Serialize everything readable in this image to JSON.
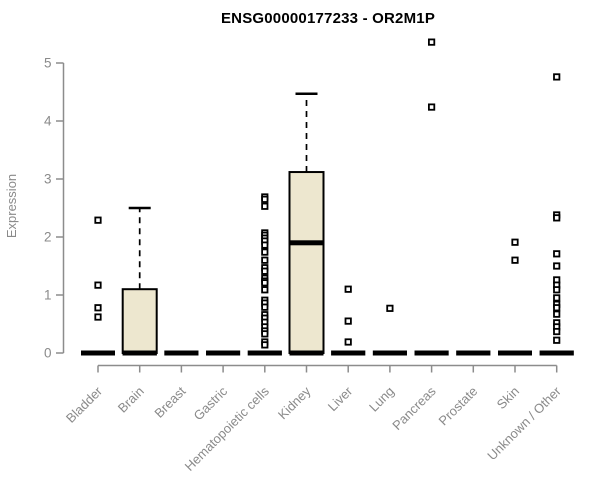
{
  "page": {
    "title": "ENSG00000177233 - OR2M1P"
  },
  "chart_data": {
    "type": "boxplot",
    "title": "ENSG00000177233 - OR2M1P",
    "ylabel": "Expression",
    "xlabel": "",
    "ylim": [
      0,
      5
    ],
    "yticks": [
      0,
      1,
      2,
      3,
      4,
      5
    ],
    "grid": false,
    "legend": "none",
    "box_fill": "#ede7cf",
    "box_border": "#000000",
    "axis_color": "#8c8c8c",
    "label_color": "#8a8a8a",
    "categories": [
      "Bladder",
      "Brain",
      "Breast",
      "Gastric",
      "Hematopoietic cells",
      "Kidney",
      "Liver",
      "Lung",
      "Pancreas",
      "Prostate",
      "Skin",
      "Unknown / Other"
    ],
    "series": [
      {
        "category": "Bladder",
        "whisker_low": 0,
        "q1": 0,
        "median": 0,
        "q3": 0,
        "whisker_high": 0,
        "outliers": [
          2.29,
          1.17,
          0.78,
          0.62
        ]
      },
      {
        "category": "Brain",
        "whisker_low": 0,
        "q1": 0,
        "median": 0,
        "q3": 1.1,
        "whisker_high": 2.5,
        "outliers": []
      },
      {
        "category": "Breast",
        "whisker_low": 0,
        "q1": 0,
        "median": 0,
        "q3": 0,
        "whisker_high": 0,
        "outliers": []
      },
      {
        "category": "Gastric",
        "whisker_low": 0,
        "q1": 0,
        "median": 0,
        "q3": 0,
        "whisker_high": 0,
        "outliers": []
      },
      {
        "category": "Hematopoietic cells",
        "whisker_low": 0,
        "q1": 0,
        "median": 0,
        "q3": 0,
        "whisker_high": 0,
        "outliers": [
          2.69,
          2.65,
          2.53,
          2.07,
          2.03,
          1.98,
          1.93,
          1.86,
          1.74,
          1.6,
          1.47,
          1.41,
          1.29,
          1.24,
          1.21,
          1.09,
          0.91,
          0.86,
          0.79,
          0.66,
          0.6,
          0.53,
          0.45,
          0.38,
          0.33,
          0.19,
          0.14
        ]
      },
      {
        "category": "Kidney",
        "whisker_low": 0,
        "q1": 0,
        "median": 1.9,
        "q3": 3.12,
        "whisker_high": 4.47,
        "outliers": []
      },
      {
        "category": "Liver",
        "whisker_low": 0,
        "q1": 0,
        "median": 0,
        "q3": 0,
        "whisker_high": 0,
        "outliers": [
          1.1,
          0.55,
          0.19
        ]
      },
      {
        "category": "Lung",
        "whisker_low": 0,
        "q1": 0,
        "median": 0,
        "q3": 0,
        "whisker_high": 0,
        "outliers": [
          0.77
        ]
      },
      {
        "category": "Pancreas",
        "whisker_low": 0,
        "q1": 0,
        "median": 0,
        "q3": 0,
        "whisker_high": 0,
        "outliers": [
          5.36,
          4.24
        ]
      },
      {
        "category": "Prostate",
        "whisker_low": 0,
        "q1": 0,
        "median": 0,
        "q3": 0,
        "whisker_high": 0,
        "outliers": []
      },
      {
        "category": "Skin",
        "whisker_low": 0,
        "q1": 0,
        "median": 0,
        "q3": 0,
        "whisker_high": 0,
        "outliers": [
          1.91,
          1.6
        ]
      },
      {
        "category": "Unknown / Other",
        "whisker_low": 0,
        "q1": 0,
        "median": 0,
        "q3": 0,
        "whisker_high": 0,
        "outliers": [
          4.76,
          2.38,
          2.33,
          1.71,
          1.5,
          1.26,
          1.17,
          1.09,
          0.95,
          0.84,
          0.78,
          0.67,
          0.52,
          0.45,
          0.37,
          0.22
        ]
      }
    ]
  }
}
